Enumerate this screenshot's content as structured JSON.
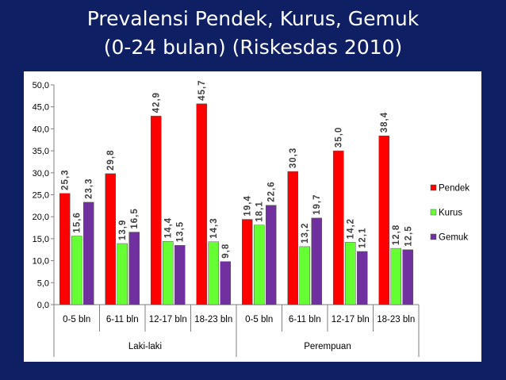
{
  "slide": {
    "title_line1": "Prevalensi Pendek, Kurus, Gemuk",
    "title_line2": "(0-24 bulan) (Riskesdas 2010)"
  },
  "chart_data": {
    "type": "bar",
    "title": "",
    "xlabel": "",
    "ylabel": "",
    "ylim": [
      0,
      50
    ],
    "yticks": [
      "0,0",
      "5,0",
      "10,0",
      "15,0",
      "20,0",
      "25,0",
      "30,0",
      "35,0",
      "40,0",
      "45,0",
      "50,0"
    ],
    "groups": [
      "Laki-laki",
      "Perempuan"
    ],
    "categories": [
      "0-5 bln",
      "6-11 bln",
      "12-17 bln",
      "18-23 bln",
      "0-5 bln",
      "6-11 bln",
      "12-17 bln",
      "18-23 bln"
    ],
    "series": [
      {
        "name": "Pendek",
        "color": "#ff0000",
        "values": [
          25.3,
          29.8,
          42.9,
          45.7,
          19.4,
          30.3,
          35.0,
          38.4
        ],
        "labels": [
          "25,3",
          "29,8",
          "42,9",
          "45,7",
          "19,4",
          "30,3",
          "35,0",
          "38,4"
        ]
      },
      {
        "name": "Kurus",
        "color": "#66ff33",
        "values": [
          15.6,
          13.9,
          14.4,
          14.3,
          18.1,
          13.2,
          14.2,
          12.8
        ],
        "labels": [
          "15,6",
          "13,9",
          "14,4",
          "14,3",
          "18,1",
          "13,2",
          "14,2",
          "12,8"
        ]
      },
      {
        "name": "Gemuk",
        "color": "#7030a0",
        "values": [
          23.3,
          16.5,
          13.5,
          9.8,
          22.6,
          19.7,
          12.1,
          12.5
        ],
        "labels": [
          "23,3",
          "16,5",
          "13,5",
          "9,8",
          "22,6",
          "19,7",
          "12,1",
          "12,5"
        ]
      }
    ],
    "legend_position": "right",
    "grid": false
  }
}
